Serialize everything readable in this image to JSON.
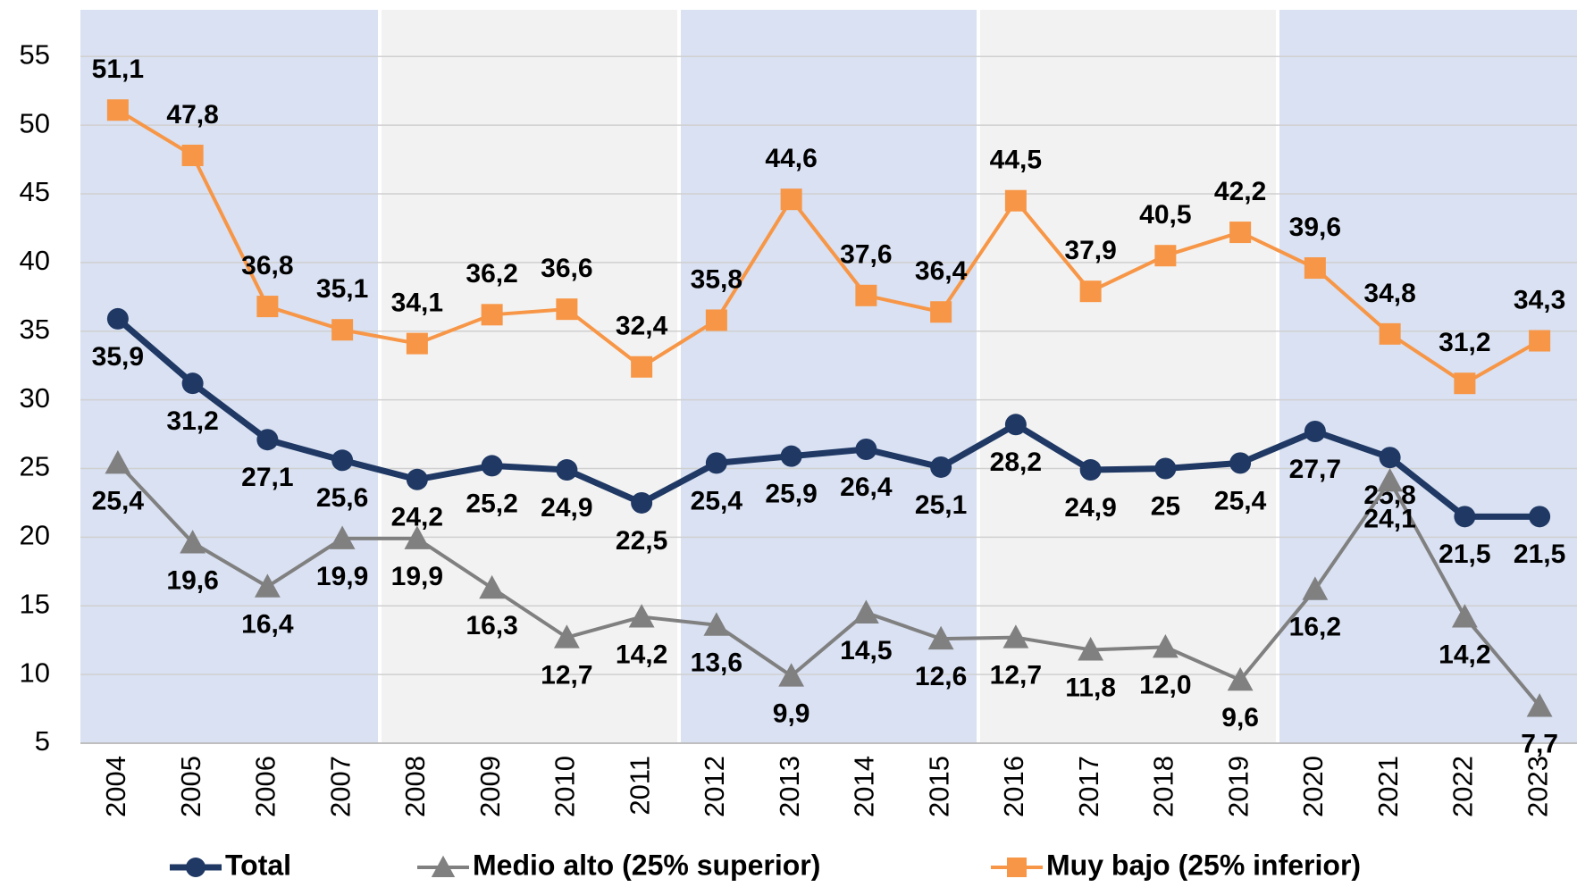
{
  "chart_data": {
    "type": "line",
    "categories": [
      "2004",
      "2005",
      "2006",
      "2007",
      "2008",
      "2009",
      "2010",
      "2011",
      "2012",
      "2013",
      "2014",
      "2015",
      "2016",
      "2017",
      "2018",
      "2019",
      "2020",
      "2021",
      "2022",
      "2023"
    ],
    "ylim": [
      5,
      58.4
    ],
    "yticks": [
      5,
      10,
      15,
      20,
      25,
      30,
      35,
      40,
      45,
      50,
      55
    ],
    "grid": true,
    "legend": "bottom",
    "series": [
      {
        "name": "Total",
        "color": "#1f3864",
        "marker": "circle",
        "label_side": "below",
        "values": [
          35.9,
          31.2,
          27.1,
          25.6,
          24.2,
          25.2,
          24.9,
          22.5,
          25.4,
          25.9,
          26.4,
          25.1,
          28.2,
          24.9,
          25,
          25.4,
          27.7,
          25.8,
          21.5,
          21.5
        ],
        "value_labels": [
          "35,9",
          "31,2",
          "27,1",
          "25,6",
          "24,2",
          "25,2",
          "24,9",
          "22,5",
          "25,4",
          "25,9",
          "26,4",
          "25,1",
          "28,2",
          "24,9",
          "25",
          "25,4",
          "27,7",
          "25,8",
          "21,5",
          "21,5"
        ]
      },
      {
        "name": "Medio alto (25% superior)",
        "color": "#808080",
        "marker": "triangle",
        "label_side": "below",
        "values": [
          25.4,
          19.6,
          16.4,
          19.9,
          19.9,
          16.3,
          12.7,
          14.2,
          13.6,
          9.9,
          14.5,
          12.6,
          12.7,
          11.8,
          12.0,
          9.6,
          16.2,
          24.1,
          14.2,
          7.7
        ],
        "value_labels": [
          "25,4",
          "19,6",
          "16,4",
          "19,9",
          "19,9",
          "16,3",
          "12,7",
          "14,2",
          "13,6",
          "9,9",
          "14,5",
          "12,6",
          "12,7",
          "11,8",
          "12,0",
          "9,6",
          "16,2",
          "24,1",
          "14,2",
          "7,7"
        ]
      },
      {
        "name": "Muy bajo (25% inferior)",
        "color": "#f79646",
        "marker": "square",
        "label_side": "above",
        "values": [
          51.1,
          47.8,
          36.8,
          35.1,
          34.1,
          36.2,
          36.6,
          32.4,
          35.8,
          44.6,
          37.6,
          36.4,
          44.5,
          37.9,
          40.5,
          42.2,
          39.6,
          34.8,
          31.2,
          34.3
        ],
        "value_labels": [
          "51,1",
          "47,8",
          "36,8",
          "35,1",
          "34,1",
          "36,2",
          "36,6",
          "32,4",
          "35,8",
          "44,6",
          "37,6",
          "36,4",
          "44,5",
          "37,9",
          "40,5",
          "42,2",
          "39,6",
          "34,8",
          "31,2",
          "34,3"
        ]
      }
    ]
  }
}
